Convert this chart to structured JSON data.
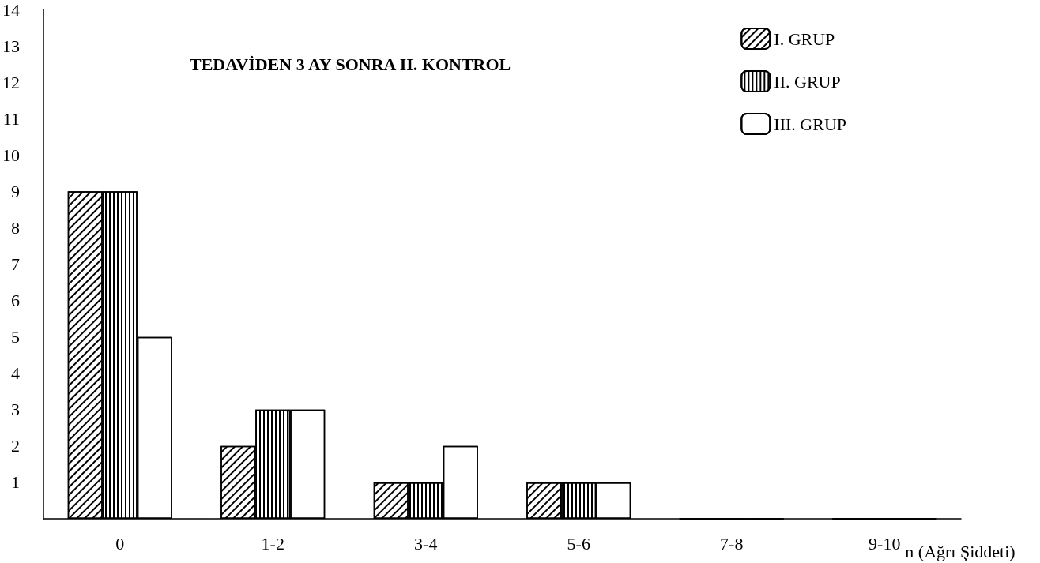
{
  "chart_data": {
    "type": "bar",
    "title": "TEDAVİDEN 3 AY SONRA II. KONTROL",
    "xlabel": "n (Ağrı Şiddeti)",
    "categories": [
      "0",
      "1-2",
      "3-4",
      "5-6",
      "7-8",
      "9-10"
    ],
    "series": [
      {
        "name": "I. GRUP",
        "color": "#ffffff",
        "values": [
          9,
          2,
          1,
          1,
          0,
          0
        ]
      },
      {
        "name": "II. GRUP",
        "color": "#ffffff",
        "values": [
          9,
          3,
          1,
          1,
          0,
          0
        ]
      },
      {
        "name": "III. GRUP",
        "color": "#ffffff",
        "values": [
          5,
          3,
          2,
          1,
          0,
          0
        ]
      }
    ],
    "ylim": [
      0,
      14
    ],
    "yticks": [
      1,
      2,
      3,
      4,
      5,
      6,
      7,
      8,
      9,
      10,
      11,
      12,
      13,
      14
    ],
    "grid": false,
    "legend": "top right"
  }
}
